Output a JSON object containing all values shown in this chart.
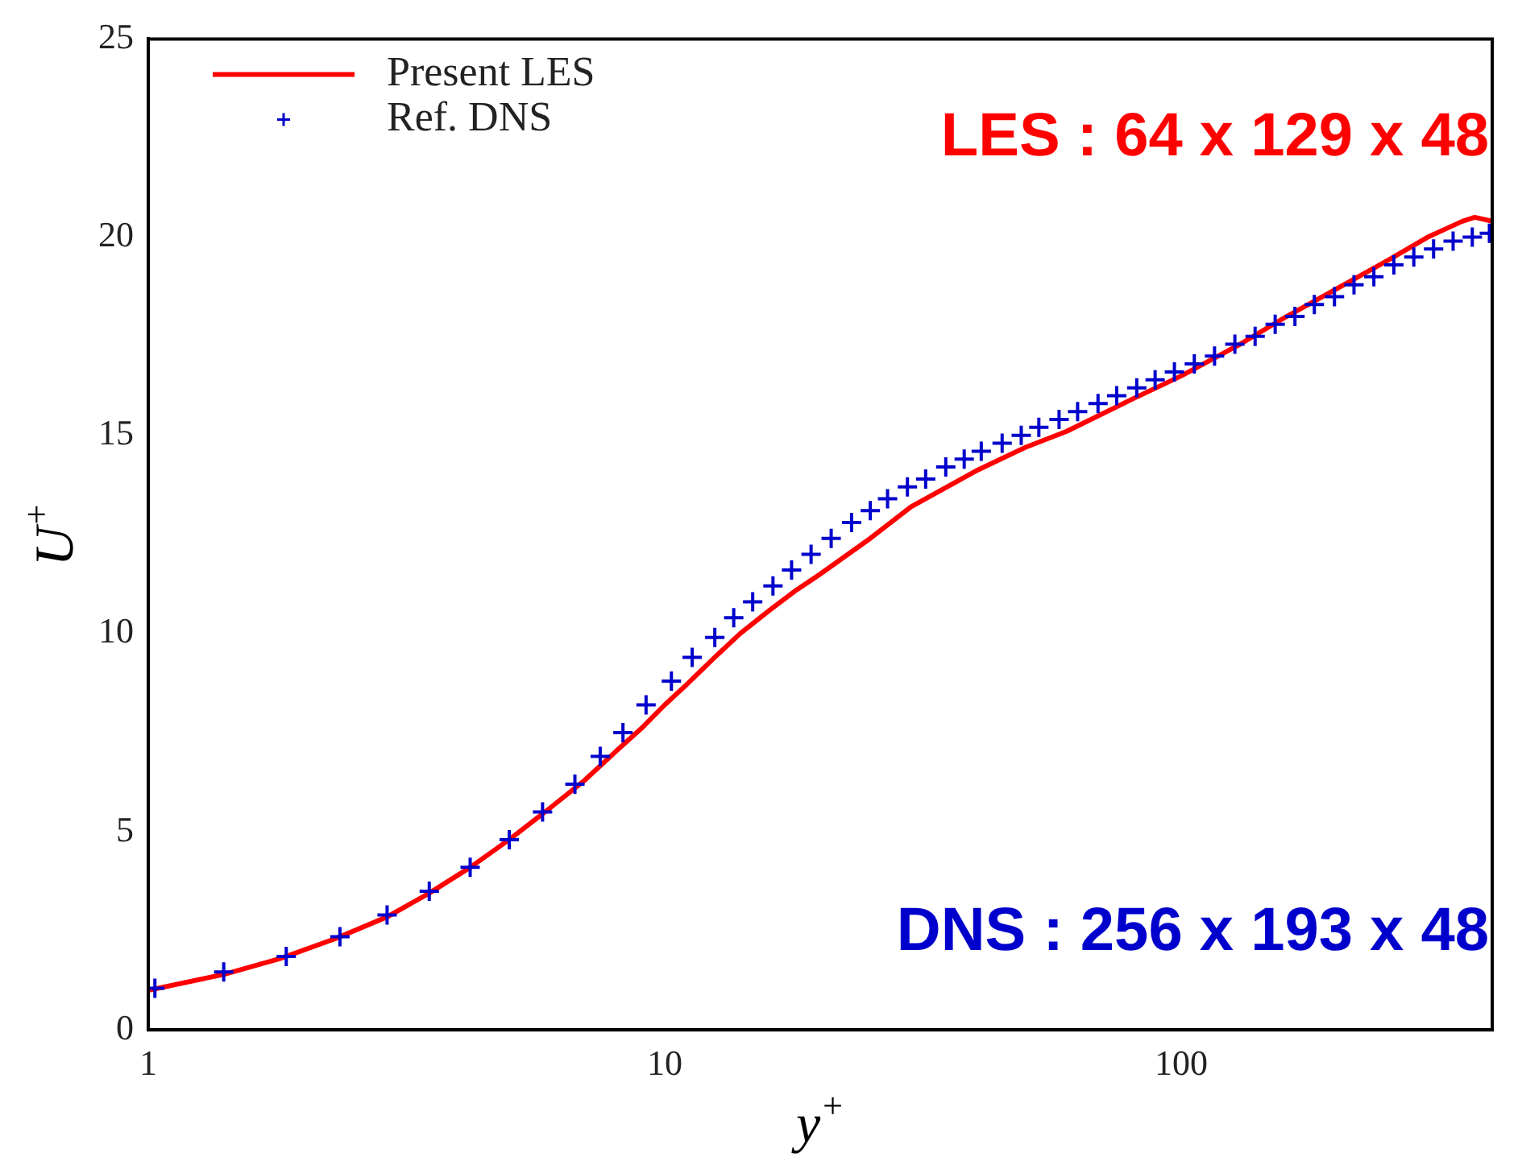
{
  "chart_data": {
    "type": "line",
    "xlabel": "y$^{+}$",
    "ylabel": "U$^{+}$",
    "log": "x",
    "xlim": [
      1,
      400
    ],
    "xticks": [
      1,
      10,
      100
    ],
    "ylim": [
      0,
      25
    ],
    "yticks": [
      0,
      5,
      10,
      15,
      20,
      25
    ],
    "legend": "top left",
    "annotations": [
      "LES : 64 x 129 x 48",
      "DNS : 256 x 193 x 48"
    ],
    "series": [
      {
        "name": "Present LES",
        "type": "line",
        "color": "#ff0000",
        "marker": "none",
        "line_style": "solid",
        "x": [
          1,
          1.4,
          1.8,
          2.3,
          2.9,
          3.5,
          4.2,
          5,
          6,
          7,
          8,
          9,
          10,
          11,
          12.5,
          14,
          16,
          18,
          20,
          25,
          30,
          40,
          50,
          60,
          80,
          100,
          130,
          160,
          200,
          250,
          300,
          350,
          370,
          400
        ],
        "values": [
          1.0,
          1.4,
          1.8,
          2.3,
          2.85,
          3.45,
          4.1,
          4.8,
          5.6,
          6.3,
          7.0,
          7.6,
          8.2,
          8.7,
          9.4,
          10.0,
          10.6,
          11.1,
          11.5,
          12.4,
          13.2,
          14.1,
          14.7,
          15.1,
          15.9,
          16.5,
          17.3,
          18.0,
          18.7,
          19.4,
          20.0,
          20.4,
          20.5,
          20.4
        ]
      },
      {
        "name": "Ref. DNS",
        "type": "scatter",
        "color": "#0000cc",
        "marker": "cross",
        "x": [
          1.03,
          1.4,
          1.85,
          2.35,
          2.9,
          3.5,
          4.2,
          5,
          5.8,
          6.7,
          7.5,
          8.3,
          9.2,
          10.3,
          11.3,
          12.5,
          13.6,
          14.8,
          16.2,
          17.6,
          19.2,
          21,
          23,
          25,
          27,
          29.5,
          32,
          35,
          38,
          41,
          45,
          49,
          53,
          58,
          63,
          69,
          75,
          82,
          89,
          97,
          106,
          116,
          127,
          139,
          152,
          166,
          181,
          198,
          216,
          236,
          258,
          282,
          308,
          336,
          366,
          395
        ],
        "values": [
          1.05,
          1.46,
          1.85,
          2.35,
          2.9,
          3.5,
          4.1,
          4.8,
          5.5,
          6.2,
          6.9,
          7.5,
          8.2,
          8.8,
          9.4,
          9.9,
          10.4,
          10.8,
          11.2,
          11.6,
          12.0,
          12.4,
          12.8,
          13.1,
          13.4,
          13.7,
          13.9,
          14.2,
          14.4,
          14.6,
          14.8,
          15.0,
          15.2,
          15.4,
          15.6,
          15.8,
          16.0,
          16.2,
          16.4,
          16.6,
          16.8,
          17.0,
          17.3,
          17.5,
          17.8,
          18.0,
          18.3,
          18.5,
          18.8,
          19.0,
          19.3,
          19.5,
          19.7,
          19.9,
          20.0,
          20.1
        ]
      }
    ]
  }
}
